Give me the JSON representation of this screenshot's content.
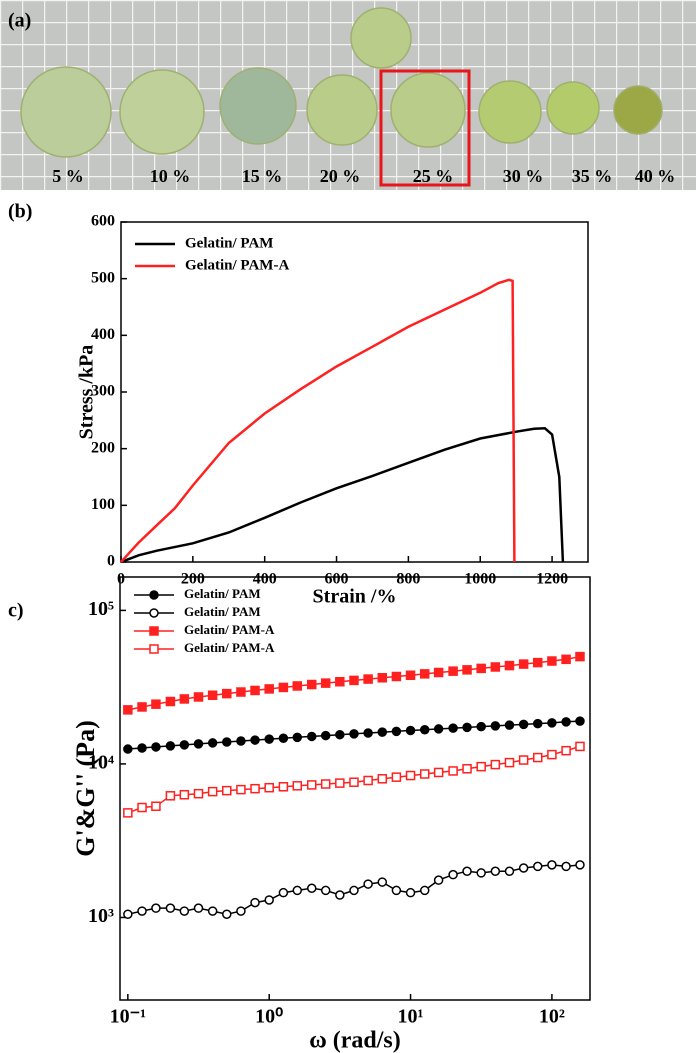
{
  "photo": {
    "label": "(a)",
    "captions": [
      "5 %",
      "10 %",
      "15 %",
      "20 %",
      "25 %",
      "30 %",
      "35 %",
      "40 %"
    ]
  },
  "chart_data": [
    {
      "type": "line",
      "label": "(b)",
      "xlabel": "Strain /%",
      "ylabel": "Stress /kPa",
      "xlim": [
        0,
        1300
      ],
      "xticks": [
        0,
        200,
        400,
        600,
        800,
        1000,
        1200
      ],
      "ylim": [
        0,
        600
      ],
      "yticks": [
        0,
        100,
        200,
        300,
        400,
        500,
        600
      ],
      "legend": "upper left",
      "series": [
        {
          "name": "Gelatin/ PAM",
          "color": "#000000",
          "x": [
            0,
            50,
            100,
            200,
            300,
            400,
            500,
            600,
            700,
            800,
            900,
            1000,
            1100,
            1150,
            1180,
            1200,
            1220,
            1230
          ],
          "values": [
            0,
            12,
            20,
            33,
            52,
            78,
            105,
            130,
            152,
            175,
            198,
            218,
            230,
            235,
            236,
            225,
            150,
            0
          ]
        },
        {
          "name": "Gelatin/ PAM-A",
          "color": "#ff2020",
          "x": [
            0,
            50,
            100,
            150,
            200,
            300,
            400,
            500,
            600,
            700,
            800,
            900,
            1000,
            1050,
            1080,
            1090,
            1095
          ],
          "values": [
            0,
            35,
            65,
            95,
            135,
            210,
            262,
            305,
            345,
            380,
            415,
            445,
            475,
            492,
            498,
            496,
            0
          ]
        }
      ]
    },
    {
      "type": "scatter",
      "label": "c)",
      "xlabel": "ω (rad/s)",
      "ylabel": "G'&G'' (Pa)",
      "xscale": "log",
      "yscale": "log",
      "xlim": [
        0.088,
        186
      ],
      "ylim": [
        290,
        165000
      ],
      "xticks": [
        {
          "value": 0.1,
          "label": "10⁻¹"
        },
        {
          "value": 1,
          "label": "10⁰"
        },
        {
          "value": 10,
          "label": "10¹"
        },
        {
          "value": 100,
          "label": "10²"
        }
      ],
      "yticks": [
        {
          "value": 1000,
          "label": "10³"
        },
        {
          "value": 10000,
          "label": "10⁴"
        },
        {
          "value": 100000,
          "label": "10⁵"
        }
      ],
      "legend": "upper left",
      "x": [
        0.1,
        0.126,
        0.158,
        0.2,
        0.251,
        0.316,
        0.398,
        0.501,
        0.631,
        0.794,
        1,
        1.26,
        1.58,
        2,
        2.51,
        3.16,
        3.98,
        5.01,
        6.31,
        7.94,
        10,
        12.6,
        15.8,
        20,
        25.1,
        31.6,
        39.8,
        50.1,
        63.1,
        79.4,
        100,
        126,
        158
      ],
      "series": [
        {
          "name": "Gelatin/ PAM",
          "color": "#000000",
          "marker": "circle",
          "filled": true,
          "values": [
            12500,
            12700,
            12900,
            13100,
            13300,
            13500,
            13700,
            13900,
            14100,
            14300,
            14500,
            14700,
            14900,
            15100,
            15300,
            15500,
            15700,
            15900,
            16100,
            16300,
            16500,
            16700,
            16900,
            17100,
            17300,
            17500,
            17700,
            17900,
            18100,
            18300,
            18500,
            18800,
            19000
          ]
        },
        {
          "name": "Gelatin/ PAM",
          "color": "#000000",
          "marker": "circle",
          "filled": false,
          "values": [
            1050,
            1100,
            1150,
            1150,
            1100,
            1150,
            1100,
            1050,
            1100,
            1250,
            1300,
            1450,
            1500,
            1550,
            1500,
            1400,
            1500,
            1650,
            1700,
            1500,
            1450,
            1500,
            1750,
            1900,
            2000,
            1950,
            2000,
            2000,
            2100,
            2150,
            2200,
            2150,
            2200
          ]
        },
        {
          "name": "Gelatin/ PAM-A",
          "color": "#ff2020",
          "marker": "square",
          "filled": true,
          "values": [
            22500,
            23500,
            24500,
            25500,
            26500,
            27300,
            28000,
            28700,
            29400,
            30100,
            30800,
            31500,
            32200,
            32900,
            33600,
            34300,
            35000,
            35700,
            36400,
            37100,
            37800,
            38600,
            39400,
            40200,
            41000,
            41900,
            42800,
            43700,
            44700,
            45700,
            46800,
            48000,
            50000
          ]
        },
        {
          "name": "Gelatin/ PAM-A",
          "color": "#ff2020",
          "marker": "square",
          "filled": false,
          "values": [
            4800,
            5200,
            5300,
            6200,
            6300,
            6400,
            6600,
            6700,
            6800,
            6900,
            7000,
            7100,
            7200,
            7300,
            7400,
            7500,
            7600,
            7800,
            8000,
            8200,
            8400,
            8600,
            8800,
            9000,
            9300,
            9600,
            9900,
            10200,
            10600,
            11000,
            11500,
            12200,
            13000
          ]
        }
      ]
    }
  ]
}
